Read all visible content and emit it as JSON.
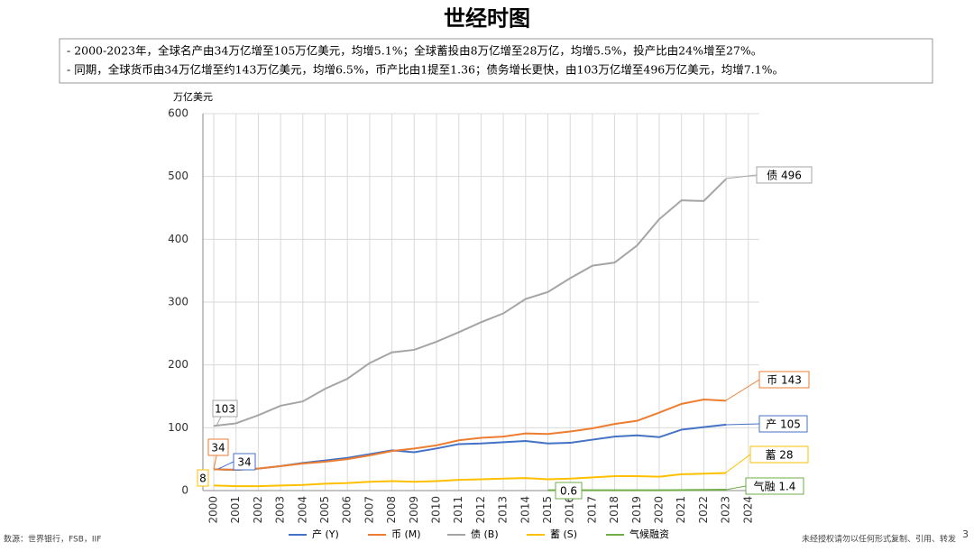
{
  "header": {
    "title": "世经时图",
    "notes": [
      "- 2000-2023年，全球名产由34万亿增至105万亿美元，均增5.1%；全球蓄投由8万亿增至28万亿，均增5.5%，投产比由24%增至27%。",
      "- 同期，全球货币由34万亿增至约143万亿美元，均增6.5%，币产比由1提至1.36；债务增长更快，由103万亿增至496万亿美元，均增7.1%。"
    ]
  },
  "chart_data": {
    "type": "line",
    "y_label": "万亿美元",
    "categories": [
      "2000",
      "2001",
      "2002",
      "2003",
      "2004",
      "2005",
      "2006",
      "2007",
      "2008",
      "2009",
      "2010",
      "2011",
      "2012",
      "2013",
      "2014",
      "2015",
      "2016",
      "2017",
      "2018",
      "2019",
      "2020",
      "2021",
      "2022",
      "2023",
      "2024"
    ],
    "ylim": [
      0,
      600
    ],
    "yticks": [
      0,
      100,
      200,
      300,
      400,
      500,
      600
    ],
    "grid": true,
    "legend": "bottom",
    "series": [
      {
        "name": "产 (Y)",
        "color": "#4472c4",
        "values": [
          34,
          33,
          35,
          39,
          44,
          48,
          52,
          58,
          64,
          61,
          67,
          74,
          75,
          77,
          79,
          75,
          76,
          81,
          86,
          88,
          85,
          97,
          101,
          105,
          null
        ]
      },
      {
        "name": "币 (M)",
        "color": "#ed7d31",
        "values": [
          34,
          33,
          35,
          39,
          43,
          46,
          50,
          56,
          63,
          67,
          72,
          80,
          84,
          86,
          91,
          90,
          94,
          99,
          106,
          111,
          124,
          138,
          145,
          143,
          null
        ]
      },
      {
        "name": "债 (B)",
        "color": "#a5a5a5",
        "values": [
          103,
          107,
          120,
          135,
          142,
          162,
          178,
          203,
          220,
          224,
          237,
          252,
          268,
          282,
          305,
          316,
          338,
          358,
          363,
          390,
          432,
          462,
          461,
          496,
          null
        ]
      },
      {
        "name": "蓄 (S)",
        "color": "#ffc000",
        "values": [
          8,
          7,
          7,
          8,
          9,
          11,
          12,
          14,
          15,
          14,
          15,
          17,
          18,
          19,
          20,
          18,
          19,
          21,
          23,
          23,
          22,
          26,
          27,
          28,
          null
        ]
      },
      {
        "name": "气候融资",
        "color": "#70ad47",
        "values": [
          null,
          null,
          null,
          null,
          null,
          null,
          null,
          null,
          null,
          null,
          null,
          null,
          null,
          null,
          null,
          0.6,
          0.6,
          0.6,
          0.6,
          0.6,
          0.6,
          0.8,
          1.0,
          1.4,
          null
        ]
      }
    ],
    "annotations": [
      "103",
      "34",
      "34",
      "8",
      "债 496",
      "币 143",
      "产 105",
      "蓄 28",
      "气融 1.4",
      "0.6"
    ]
  },
  "footer": {
    "source": "数源：世界银行，FSB，IIF",
    "notice": "未经授权请勿以任何形式复制、引用、转发",
    "page": "3"
  }
}
